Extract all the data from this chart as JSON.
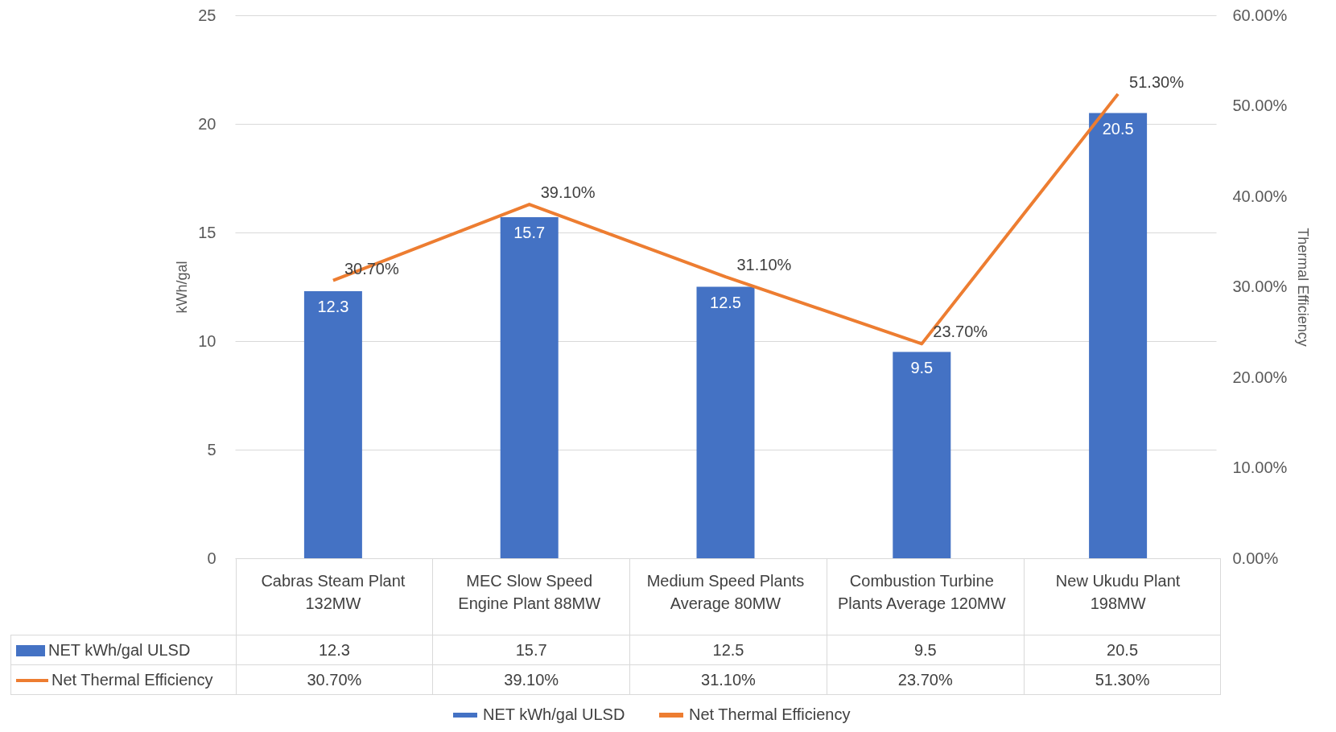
{
  "chart_data": {
    "type": "bar",
    "categories": [
      "Cabras Steam Plant 132MW",
      "MEC Slow Speed Engine Plant 88MW",
      "Medium Speed Plants Average 80MW",
      "Combustion Turbine Plants Average 120MW",
      "New Ukudu Plant 198MW"
    ],
    "ylabel": "kWh/gal",
    "y2label": "Thermal Efficiency",
    "series": [
      {
        "name": "NET kWh/gal ULSD",
        "color": "#4472c4",
        "values": [
          12.3,
          15.7,
          12.5,
          9.5,
          20.5
        ],
        "value_labels": [
          "12.3",
          "15.7",
          "12.5",
          "9.5",
          "20.5"
        ]
      },
      {
        "name": "Net Thermal Efficiency",
        "type": "line",
        "axis": "y2",
        "color": "#ed7d31",
        "values": [
          30.7,
          39.1,
          31.1,
          23.7,
          51.3
        ],
        "value_labels": [
          "30.70%",
          "39.10%",
          "31.10%",
          "23.70%",
          "51.30%"
        ]
      }
    ],
    "ylim": [
      0,
      25
    ],
    "yticks": [
      0,
      5,
      10,
      15,
      20,
      25
    ],
    "y2lim": [
      0,
      60
    ],
    "y2ticks": [
      {
        "value": 0,
        "label": "0.00%"
      },
      {
        "value": 10,
        "label": "10.00%"
      },
      {
        "value": 20,
        "label": "20.00%"
      },
      {
        "value": 30,
        "label": "30.00%"
      },
      {
        "value": 40,
        "label": "40.00%"
      },
      {
        "value": 50,
        "label": "50.00%"
      },
      {
        "value": 60,
        "label": "60.00%"
      }
    ],
    "grid": "y",
    "legend": "bottom",
    "data_labels": true,
    "marker": "none"
  }
}
